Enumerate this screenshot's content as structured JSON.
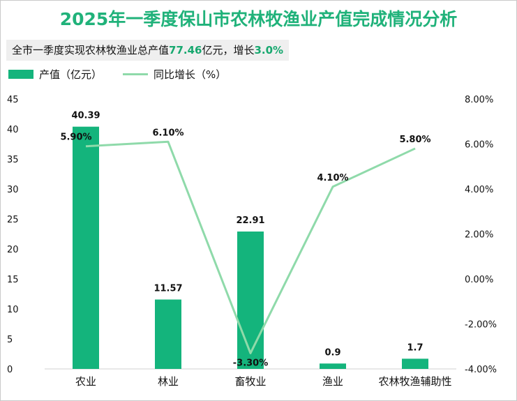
{
  "title": "2025年一季度保山市农林牧渔业产值完成情况分析",
  "subtitle": {
    "prefix": "全市一季度实现农林牧渔业总产值",
    "total": "77.46",
    "unit_mid": "亿元，增长",
    "growth": "3.0%"
  },
  "legend": {
    "bar": "产值（亿元）",
    "line": "同比增长（%）"
  },
  "colors": {
    "title": "#20b27a",
    "bar": "#14b47c",
    "line": "#8fdaaa"
  },
  "chart_data": {
    "type": "bar",
    "categories": [
      "农业",
      "林业",
      "畜牧业",
      "渔业",
      "农林牧渔辅助性"
    ],
    "series": [
      {
        "name": "产值（亿元）",
        "type": "bar",
        "axis": "left",
        "values": [
          40.39,
          11.57,
          22.91,
          0.9,
          1.7
        ],
        "labels": [
          "40.39",
          "11.57",
          "22.91",
          "0.9",
          "1.7"
        ]
      },
      {
        "name": "同比增长（%）",
        "type": "line",
        "axis": "right",
        "values": [
          5.9,
          6.1,
          -3.3,
          4.1,
          5.8
        ],
        "labels": [
          "5.90%",
          "6.10%",
          "-3.30%",
          "4.10%",
          "5.80%"
        ]
      }
    ],
    "y_left": {
      "min": 0,
      "max": 45,
      "step": 5,
      "ticks": [
        "0",
        "5",
        "10",
        "15",
        "20",
        "25",
        "30",
        "35",
        "40",
        "45"
      ]
    },
    "y_right": {
      "min": -4,
      "max": 8,
      "step": 2,
      "ticks": [
        "-4.00%",
        "-2.00%",
        "0.00%",
        "2.00%",
        "4.00%",
        "6.00%",
        "8.00%"
      ]
    }
  }
}
